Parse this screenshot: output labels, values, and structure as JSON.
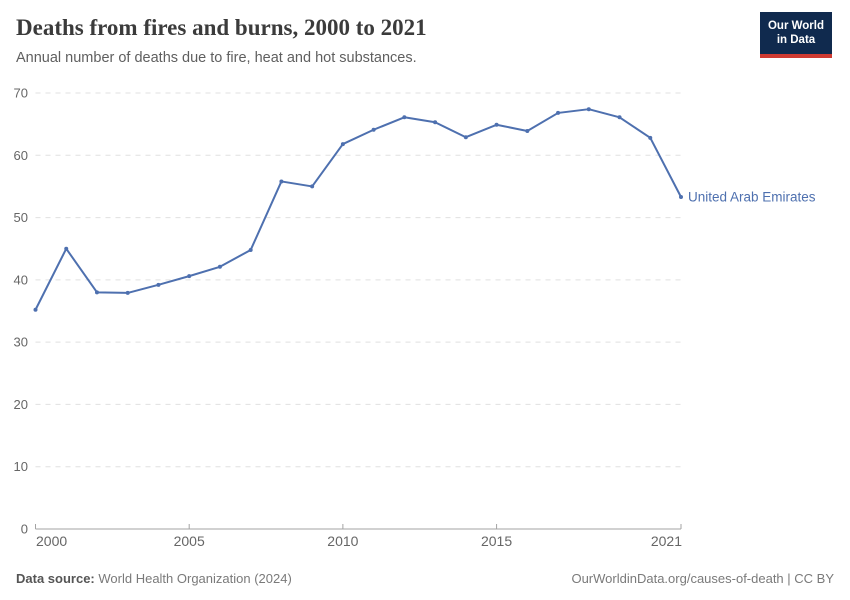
{
  "header": {
    "title": "Deaths from fires and burns, 2000 to 2021",
    "subtitle": "Annual number of deaths due to fire, heat and hot substances."
  },
  "logo": {
    "line1": "Our World",
    "line2": "in Data",
    "bg_color": "#102a4e",
    "bar_color": "#cf3a31"
  },
  "footer": {
    "source_label": "Data source:",
    "source_text": "World Health Organization (2024)",
    "credit": "OurWorldinData.org/causes-of-death | CC BY"
  },
  "colors": {
    "series": "#4e70af",
    "grid": "#e0e0e0",
    "axis": "#a3a3a3",
    "tick_label": "#666666",
    "title": "#3b3b3b",
    "subtitle": "#5f5f5f"
  },
  "chart_data": {
    "type": "line",
    "title": "Deaths from fires and burns, 2000 to 2021",
    "subtitle": "Annual number of deaths due to fire, heat and hot substances.",
    "xlabel": "",
    "ylabel": "",
    "xlim": [
      2000,
      2021
    ],
    "ylim": [
      0,
      70
    ],
    "xticks": [
      2000,
      2005,
      2010,
      2015,
      2021
    ],
    "yticks": [
      0,
      10,
      20,
      30,
      40,
      50,
      60,
      70
    ],
    "grid": "horizontal-dashed",
    "legend": "line-end-label",
    "series": [
      {
        "name": "United Arab Emirates",
        "color": "#4e70af",
        "x": [
          2000,
          2001,
          2002,
          2003,
          2004,
          2005,
          2006,
          2007,
          2008,
          2009,
          2010,
          2011,
          2012,
          2013,
          2014,
          2015,
          2016,
          2017,
          2018,
          2019,
          2020,
          2021
        ],
        "values": [
          35.2,
          45.0,
          38.0,
          37.9,
          39.2,
          40.6,
          42.1,
          44.8,
          55.8,
          55.0,
          61.8,
          64.1,
          66.1,
          65.3,
          62.9,
          64.9,
          63.9,
          66.8,
          67.4,
          66.1,
          62.8,
          53.3
        ]
      }
    ]
  }
}
